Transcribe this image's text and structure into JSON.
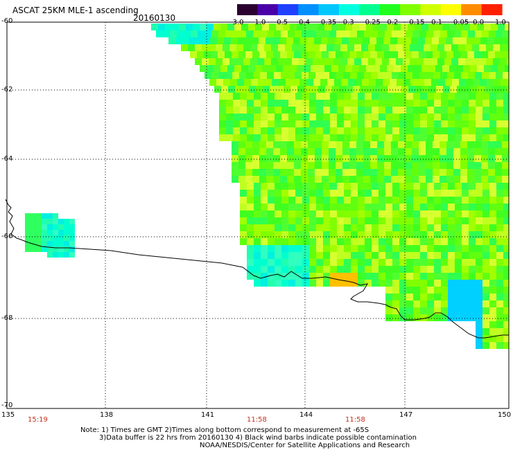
{
  "header": {
    "title": "ASCAT 25KM MLE-1 ascending",
    "date": "20160130"
  },
  "colorbar": {
    "labels": [
      "-3.0",
      "-1.0",
      "-0.5",
      "-0.4",
      "-0.35",
      "-0.3",
      "-0.25",
      "-0.2",
      "-0.15",
      "-0.1",
      "-0.05",
      "0.0",
      "1.0"
    ],
    "colors": [
      "#2a0030",
      "#4a00a8",
      "#2040ff",
      "#0090ff",
      "#00c8ff",
      "#00ffe0",
      "#00ff90",
      "#20ff20",
      "#80ff00",
      "#d0ff00",
      "#ffff00",
      "#ff8c00",
      "#ff2000"
    ]
  },
  "axes": {
    "lat_labels": [
      "-60",
      "-62",
      "-64",
      "-66",
      "-68",
      "-70"
    ],
    "lon_labels": [
      "135",
      "138",
      "141",
      "144",
      "147",
      "150"
    ]
  },
  "time_labels": [
    "15:19",
    "11:58",
    "11:58"
  ],
  "footer": {
    "line1": "Note: 1) Times are GMT 2)Times along bottom correspond to measurement at -65S",
    "line2": "3)Data buffer is 22 hrs from 20160130 4) Black wind barbs indicate possible contamination",
    "line3": "NOAA/NESDIS/Center for Satellite Applications and Research"
  }
}
